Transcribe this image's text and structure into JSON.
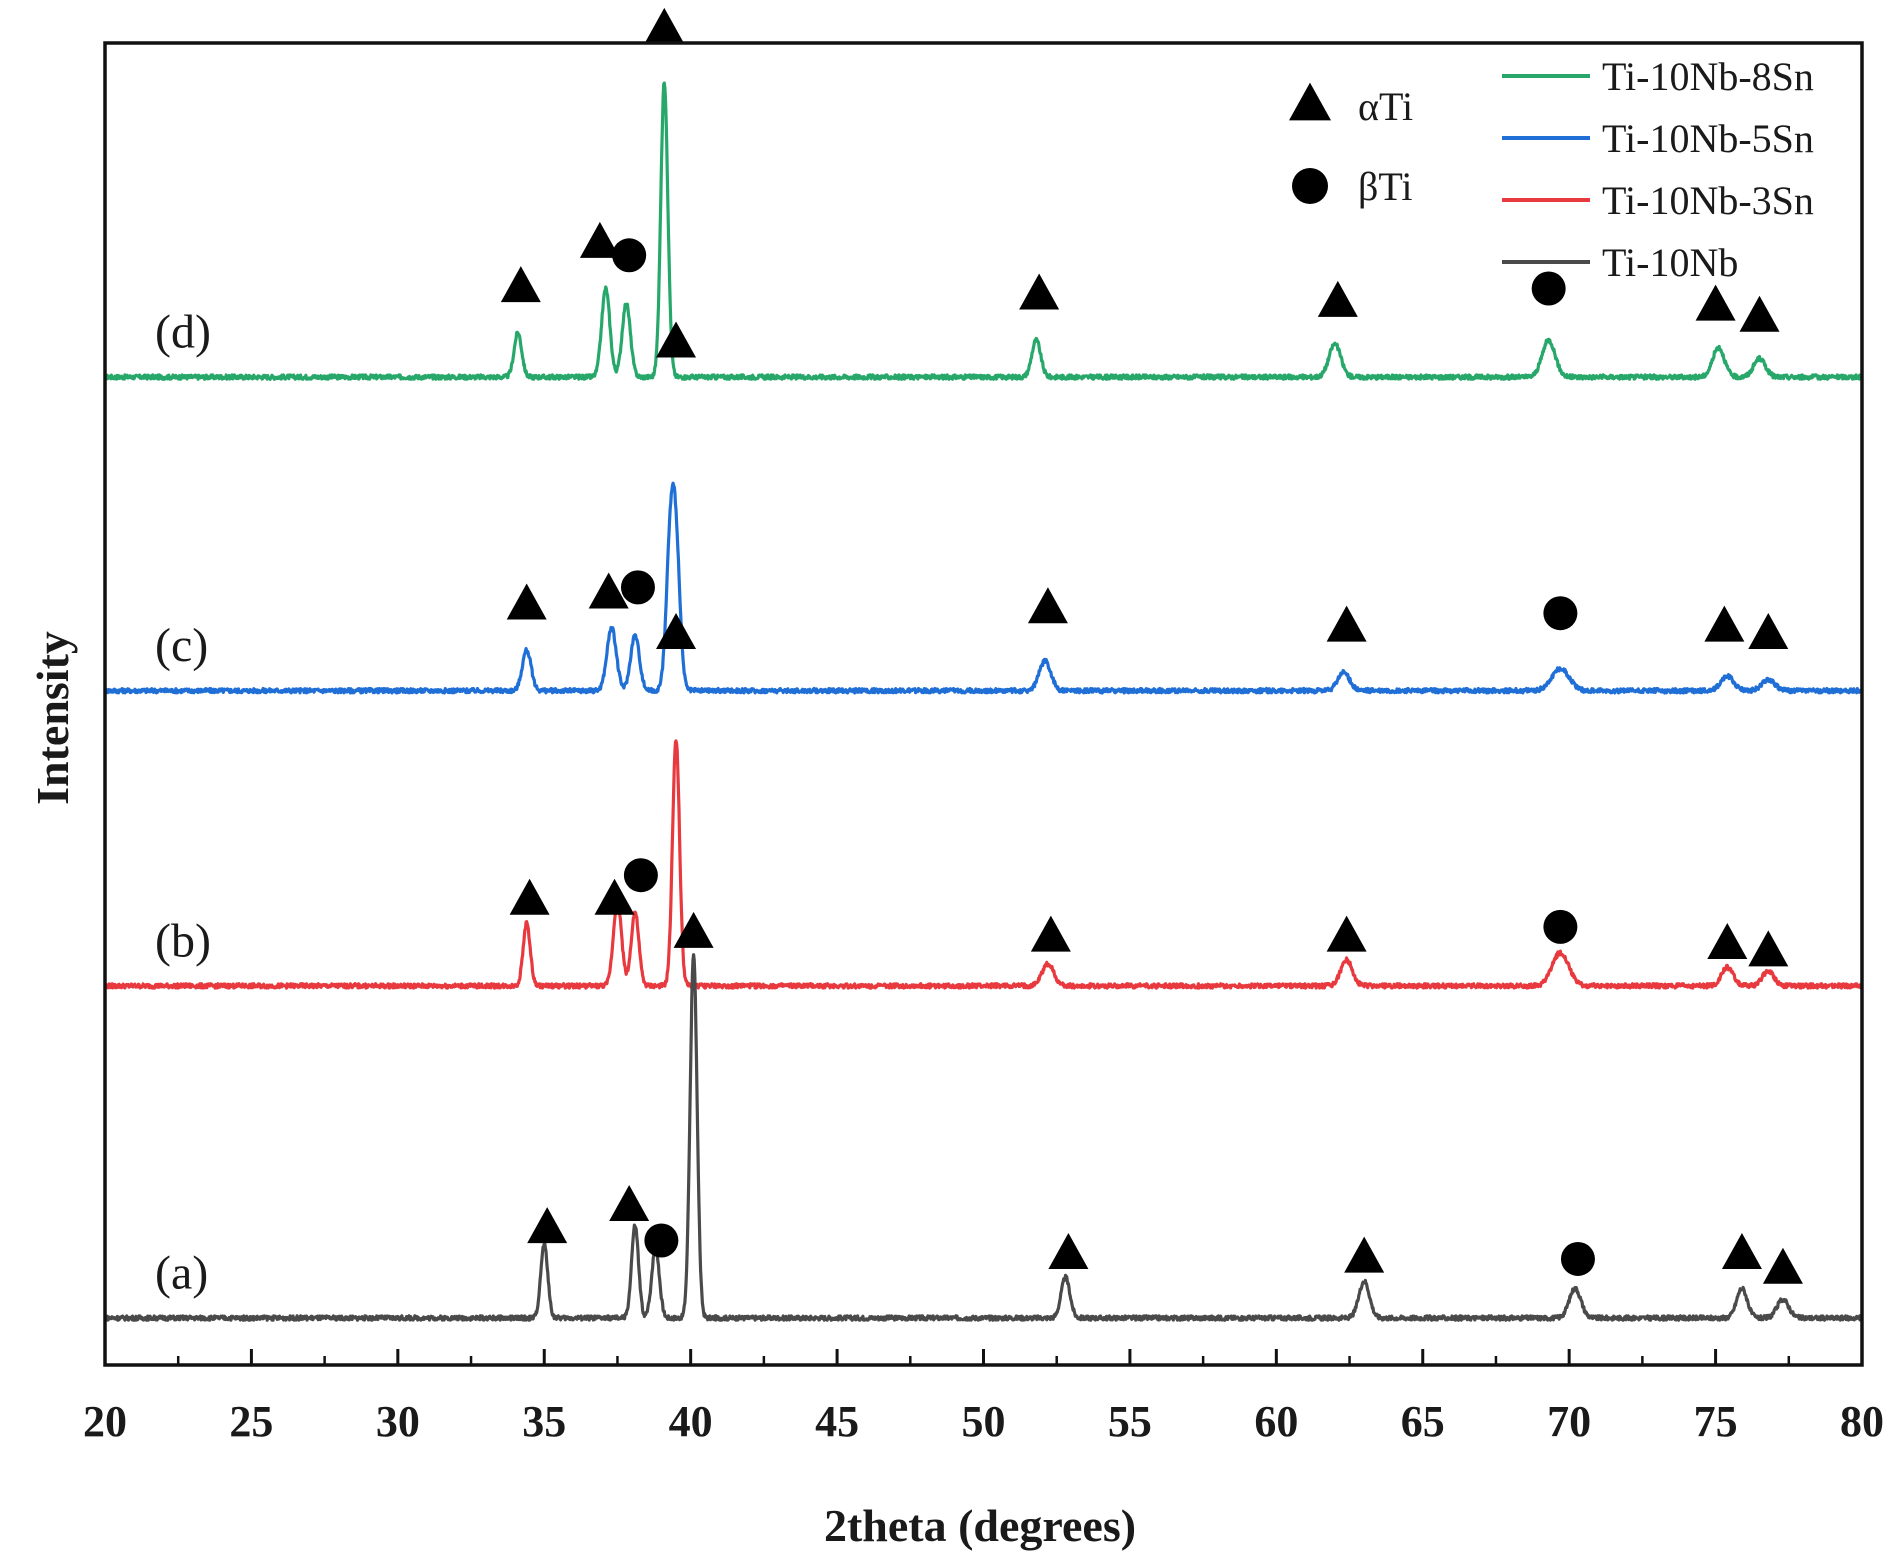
{
  "chart_data": {
    "type": "line",
    "title": "",
    "xlabel": "2theta (degrees)",
    "ylabel": "Intensity",
    "xlim": [
      20,
      80
    ],
    "xticks": [
      20,
      25,
      30,
      35,
      40,
      45,
      50,
      55,
      60,
      65,
      70,
      75,
      80
    ],
    "grid": false,
    "legend_position": "top-right",
    "series": [
      {
        "name": "Ti-10Nb-8Sn",
        "label": "(d)",
        "color": "#27a86a",
        "offset": 2.55,
        "peaks": [
          {
            "x": 34.1,
            "h": 0.12,
            "w": 0.13
          },
          {
            "x": 37.1,
            "h": 0.24,
            "w": 0.14
          },
          {
            "x": 37.8,
            "h": 0.2,
            "w": 0.14
          },
          {
            "x": 39.1,
            "h": 0.8,
            "w": 0.12
          },
          {
            "x": 51.8,
            "h": 0.1,
            "w": 0.15
          },
          {
            "x": 62.0,
            "h": 0.09,
            "w": 0.2
          },
          {
            "x": 69.3,
            "h": 0.1,
            "w": 0.22
          },
          {
            "x": 75.1,
            "h": 0.08,
            "w": 0.2
          },
          {
            "x": 76.5,
            "h": 0.05,
            "w": 0.2
          }
        ],
        "markers": [
          {
            "x": 34.2,
            "type": "alpha",
            "y": 2.79
          },
          {
            "x": 36.9,
            "type": "alpha",
            "y": 2.91
          },
          {
            "x": 37.9,
            "type": "beta",
            "y": 2.88
          },
          {
            "x": 39.1,
            "type": "alpha",
            "y": 3.49
          },
          {
            "x": 51.9,
            "type": "alpha",
            "y": 2.77
          },
          {
            "x": 62.1,
            "type": "alpha",
            "y": 2.75
          },
          {
            "x": 69.3,
            "type": "beta",
            "y": 2.79
          },
          {
            "x": 75.0,
            "type": "alpha",
            "y": 2.74
          },
          {
            "x": 76.5,
            "type": "alpha",
            "y": 2.71
          }
        ]
      },
      {
        "name": "Ti-10Nb-5Sn",
        "label": "(c)",
        "color": "#1f6fd6",
        "offset": 1.7,
        "peaks": [
          {
            "x": 34.4,
            "h": 0.11,
            "w": 0.15
          },
          {
            "x": 37.3,
            "h": 0.17,
            "w": 0.16
          },
          {
            "x": 38.1,
            "h": 0.15,
            "w": 0.15
          },
          {
            "x": 39.3,
            "h": 0.36,
            "w": 0.14
          },
          {
            "x": 39.5,
            "h": 0.36,
            "w": 0.14
          },
          {
            "x": 52.1,
            "h": 0.08,
            "w": 0.2
          },
          {
            "x": 62.3,
            "h": 0.05,
            "w": 0.2
          },
          {
            "x": 69.7,
            "h": 0.06,
            "w": 0.3
          },
          {
            "x": 75.4,
            "h": 0.04,
            "w": 0.22
          },
          {
            "x": 76.8,
            "h": 0.03,
            "w": 0.22
          }
        ],
        "markers": [
          {
            "x": 34.4,
            "type": "alpha",
            "y": 1.93
          },
          {
            "x": 37.2,
            "type": "alpha",
            "y": 1.96
          },
          {
            "x": 38.2,
            "type": "beta",
            "y": 1.98
          },
          {
            "x": 39.5,
            "type": "alpha",
            "y": 2.64
          },
          {
            "x": 52.2,
            "type": "alpha",
            "y": 1.92
          },
          {
            "x": 62.4,
            "type": "alpha",
            "y": 1.87
          },
          {
            "x": 69.7,
            "type": "beta",
            "y": 1.91
          },
          {
            "x": 75.3,
            "type": "alpha",
            "y": 1.87
          },
          {
            "x": 76.8,
            "type": "alpha",
            "y": 1.85
          }
        ]
      },
      {
        "name": "Ti-10Nb-3Sn",
        "label": "(b)",
        "color": "#e8393e",
        "offset": 0.9,
        "peaks": [
          {
            "x": 34.4,
            "h": 0.17,
            "w": 0.12
          },
          {
            "x": 37.5,
            "h": 0.23,
            "w": 0.14
          },
          {
            "x": 38.1,
            "h": 0.2,
            "w": 0.13
          },
          {
            "x": 39.5,
            "h": 0.67,
            "w": 0.12
          },
          {
            "x": 52.2,
            "h": 0.06,
            "w": 0.2
          },
          {
            "x": 62.4,
            "h": 0.07,
            "w": 0.2
          },
          {
            "x": 69.7,
            "h": 0.09,
            "w": 0.28
          },
          {
            "x": 75.4,
            "h": 0.05,
            "w": 0.2
          },
          {
            "x": 76.8,
            "h": 0.04,
            "w": 0.2
          }
        ],
        "markers": [
          {
            "x": 34.5,
            "type": "alpha",
            "y": 1.13
          },
          {
            "x": 37.4,
            "type": "alpha",
            "y": 1.13
          },
          {
            "x": 38.3,
            "type": "beta",
            "y": 1.2
          },
          {
            "x": 39.5,
            "type": "alpha",
            "y": 1.85
          },
          {
            "x": 52.3,
            "type": "alpha",
            "y": 1.03
          },
          {
            "x": 62.4,
            "type": "alpha",
            "y": 1.03
          },
          {
            "x": 69.7,
            "type": "beta",
            "y": 1.06
          },
          {
            "x": 75.4,
            "type": "alpha",
            "y": 1.01
          },
          {
            "x": 76.8,
            "type": "alpha",
            "y": 0.99
          }
        ]
      },
      {
        "name": "Ti-10Nb",
        "label": "(a)",
        "color": "#4a4a4a",
        "offset": 0.0,
        "peaks": [
          {
            "x": 35.0,
            "h": 0.2,
            "w": 0.12
          },
          {
            "x": 38.1,
            "h": 0.25,
            "w": 0.12
          },
          {
            "x": 38.8,
            "h": 0.19,
            "w": 0.13
          },
          {
            "x": 40.1,
            "h": 0.98,
            "w": 0.12
          },
          {
            "x": 52.8,
            "h": 0.11,
            "w": 0.15
          },
          {
            "x": 63.0,
            "h": 0.1,
            "w": 0.18
          },
          {
            "x": 70.2,
            "h": 0.08,
            "w": 0.2
          },
          {
            "x": 75.9,
            "h": 0.08,
            "w": 0.18
          },
          {
            "x": 77.3,
            "h": 0.05,
            "w": 0.2
          }
        ],
        "markers": [
          {
            "x": 35.1,
            "type": "alpha",
            "y": 0.24
          },
          {
            "x": 37.9,
            "type": "alpha",
            "y": 0.3
          },
          {
            "x": 39.0,
            "type": "beta",
            "y": 0.21
          },
          {
            "x": 40.1,
            "type": "alpha",
            "y": 1.04
          },
          {
            "x": 52.9,
            "type": "alpha",
            "y": 0.17
          },
          {
            "x": 63.0,
            "type": "alpha",
            "y": 0.16
          },
          {
            "x": 70.3,
            "type": "beta",
            "y": 0.16
          },
          {
            "x": 75.9,
            "type": "alpha",
            "y": 0.17
          },
          {
            "x": 77.3,
            "type": "alpha",
            "y": 0.13
          }
        ]
      }
    ],
    "phase_legend": [
      {
        "symbol": "alpha",
        "label": "αTi"
      },
      {
        "symbol": "beta",
        "label": "βTi"
      }
    ]
  }
}
